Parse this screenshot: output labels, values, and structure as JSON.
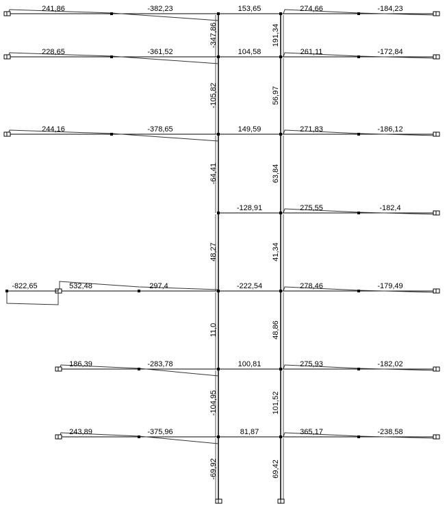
{
  "colors": {
    "background": "#ffffff",
    "member": "#000000",
    "diagram": "#333333"
  },
  "levels": [
    {
      "left": [
        "241,86",
        "-382,23"
      ],
      "middle": "153,65",
      "right": [
        "274,66",
        "-184,23"
      ]
    },
    {
      "left": [
        "228,65",
        "-361,52"
      ],
      "middle": "104,58",
      "right": [
        "261,11",
        "-172,84"
      ]
    },
    {
      "left": [
        "244,16",
        "-378,65"
      ],
      "middle": "149,59",
      "right": [
        "271,83",
        "-186,12"
      ]
    },
    {
      "left": [],
      "middle": "-128,91",
      "right": [
        "275,55",
        "-182,4"
      ]
    },
    {
      "cantilever": "-822,65",
      "left": [
        "532,48",
        "297,4"
      ],
      "middle": "-222,54",
      "right": [
        "278,46",
        "-179,49"
      ]
    },
    {
      "left": [
        "186,39",
        "-283,78"
      ],
      "middle": "100,81",
      "right": [
        "275,93",
        "-182,02"
      ]
    },
    {
      "left": [
        "243,89",
        "-375,96"
      ],
      "middle": "81,87",
      "right": [
        "365,17",
        "-238,58"
      ]
    }
  ],
  "left_column": [
    "-347,86",
    "-105,82",
    "-64,41",
    "48,27",
    "11,0",
    "-104,95",
    "-69,92"
  ],
  "right_column": [
    "191,34",
    "56,97",
    "63,84",
    "41,34",
    "48,86",
    "101,52",
    "69,42"
  ]
}
